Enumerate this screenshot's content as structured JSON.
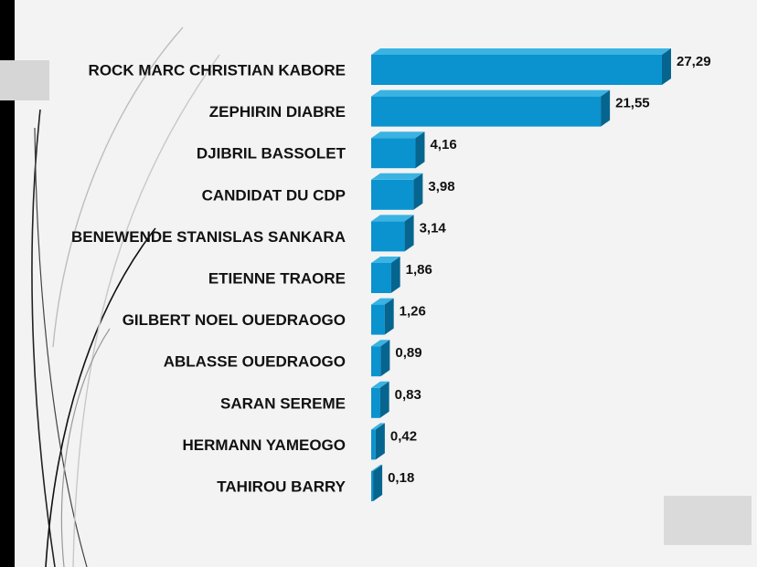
{
  "chart_data": {
    "type": "bar",
    "orientation": "horizontal",
    "style": "3d",
    "categories": [
      "ROCK MARC CHRISTIAN KABORE",
      "ZEPHIRIN DIABRE",
      "DJIBRIL BASSOLET",
      "CANDIDAT DU CDP",
      "BENEWENDE STANISLAS SANKARA",
      "ETIENNE TRAORE",
      "GILBERT NOEL OUEDRAOGO",
      "ABLASSE OUEDRAOGO",
      "SARAN SEREME",
      "HERMANN YAMEOGO",
      "TAHIROU BARRY"
    ],
    "values": [
      27.29,
      21.55,
      4.16,
      3.98,
      3.14,
      1.86,
      1.26,
      0.89,
      0.83,
      0.42,
      0.18
    ],
    "value_labels": [
      "27,29",
      "21,55",
      "4,16",
      "3,98",
      "3,14",
      "1,86",
      "1,26",
      "0,89",
      "0,83",
      "0,42",
      "0,18"
    ],
    "title": "",
    "xlabel": "",
    "ylabel": "",
    "xlim": [
      0,
      27.29
    ],
    "grid": false,
    "legend": "none",
    "colors": {
      "bar_front": "#0a93cf",
      "bar_top": "#3ab3e3",
      "bar_side": "#06658f"
    }
  }
}
